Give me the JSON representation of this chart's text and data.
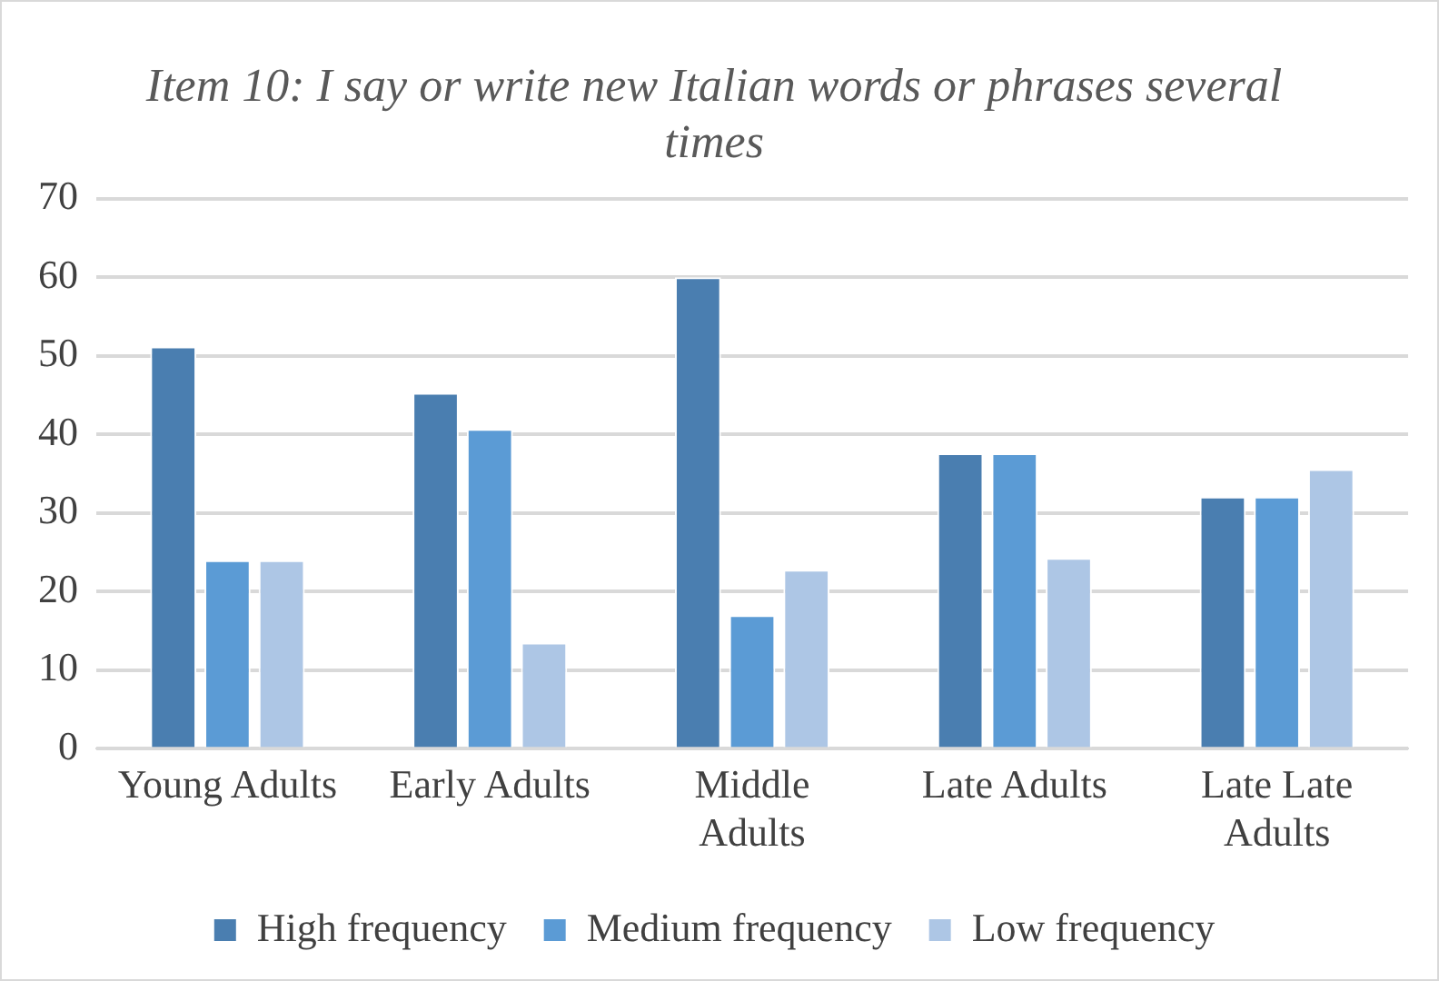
{
  "chart_data": {
    "type": "bar",
    "title": "Item 10: I say or write new Italian words or phrases several times",
    "categories": [
      "Young Adults",
      "Early Adults",
      "Middle Adults",
      "Late Adults",
      "Late Late Adults"
    ],
    "series": [
      {
        "name": "High frequency",
        "color": "#4a7eb0",
        "values": [
          51.2,
          45.3,
          60,
          37.6,
          32.1
        ]
      },
      {
        "name": "Medium frequency",
        "color": "#5b9bd5",
        "values": [
          24,
          40.7,
          17,
          37.6,
          32.1
        ]
      },
      {
        "name": "Low frequency",
        "color": "#adc6e5",
        "values": [
          24,
          13.5,
          22.8,
          24.3,
          35.6
        ]
      }
    ],
    "ylim": [
      0,
      70
    ],
    "yticks": [
      0,
      10,
      20,
      30,
      40,
      50,
      60,
      70
    ],
    "grid": "y",
    "legend": "bottom"
  }
}
